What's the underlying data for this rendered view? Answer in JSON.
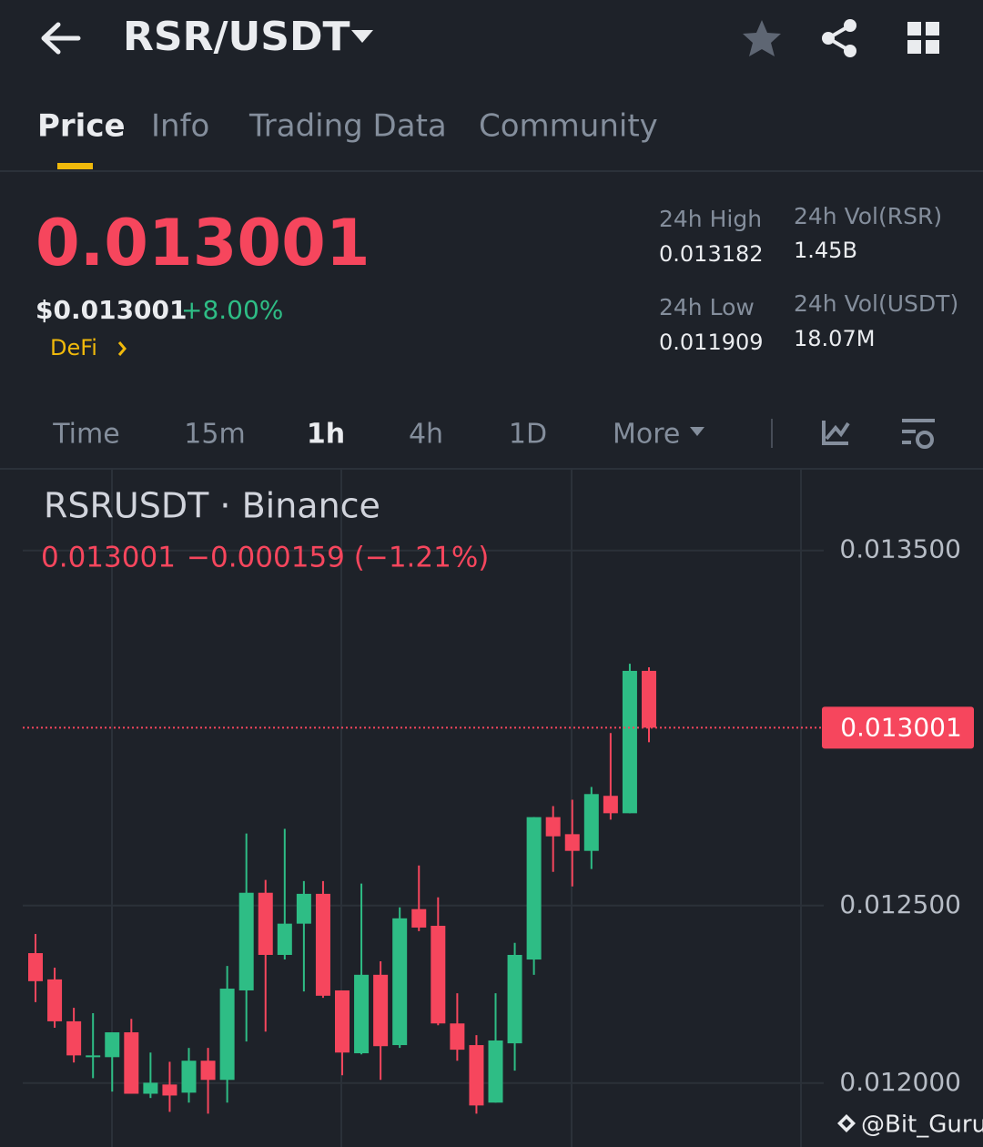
{
  "header": {
    "title": "RSR/USDT"
  },
  "tabs": [
    "Price",
    "Info",
    "Trading Data",
    "Community"
  ],
  "ticker": {
    "price": "0.013001",
    "usd_price": "$0.013001",
    "change": "+8.00%",
    "tag": "DeFi",
    "stats": [
      {
        "label": "24h High",
        "value": "0.013182"
      },
      {
        "label": "24h Vol(RSR)",
        "value": "1.45B"
      },
      {
        "label": "24h Low",
        "value": "0.011909"
      },
      {
        "label": "24h Vol(USDT)",
        "value": "18.07M"
      }
    ]
  },
  "intervals": [
    "Time",
    "15m",
    "1h",
    "4h",
    "1D",
    "More"
  ],
  "chart_data": {
    "type": "candlestick",
    "title": "RSRUSDT · Binance",
    "legend": [
      "0.013001",
      "−0.000159 (−1.21%)"
    ],
    "up_color": "#2ebd85",
    "down_color": "#f6465d",
    "grid": true,
    "ylim": [
      0.01182,
      0.01373
    ],
    "yticks": [
      {
        "value": 0.0135,
        "label": "0.013500"
      },
      {
        "value": 0.0125,
        "label": "0.012500"
      },
      {
        "value": 0.012,
        "label": "0.012000"
      }
    ],
    "last_price": {
      "value": 0.013001,
      "label": "0.013001"
    },
    "open": [
      0.012366,
      0.012292,
      0.012174,
      0.012078,
      0.012073,
      0.012143,
      0.01197,
      0.011996,
      0.011973,
      0.012063,
      0.012009,
      0.012261,
      0.012536,
      0.012361,
      0.012449,
      0.012533,
      0.012261,
      0.012084,
      0.012305,
      0.012107,
      0.01249,
      0.012443,
      0.012168,
      0.012107,
      0.011945,
      0.012112,
      0.012348,
      0.012749,
      0.012701,
      0.012654,
      0.012809,
      0.01276,
      0.013161
    ],
    "high": [
      0.01242,
      0.012325,
      0.012212,
      0.012197,
      0.012143,
      0.012181,
      0.012086,
      0.01206,
      0.012099,
      0.012099,
      0.01233,
      0.012703,
      0.012572,
      0.012716,
      0.012569,
      0.012569,
      0.012261,
      0.012562,
      0.012343,
      0.012495,
      0.012613,
      0.012523,
      0.012253,
      0.012135,
      0.012253,
      0.012395,
      0.012749,
      0.01278,
      0.012798,
      0.012834,
      0.012986,
      0.013181,
      0.013171
    ],
    "low": [
      0.012228,
      0.012156,
      0.012058,
      0.012014,
      0.011976,
      0.01197,
      0.011958,
      0.011919,
      0.011945,
      0.011914,
      0.011945,
      0.012117,
      0.012145,
      0.012348,
      0.012258,
      0.01224,
      0.012022,
      0.012081,
      0.012009,
      0.012099,
      0.012428,
      0.012163,
      0.012063,
      0.011914,
      0.011945,
      0.012035,
      0.012305,
      0.012595,
      0.012554,
      0.012603,
      0.012742,
      0.01276,
      0.01296
    ],
    "close": [
      0.012287,
      0.012174,
      0.012078,
      0.012078,
      0.012143,
      0.01197,
      0.012001,
      0.011965,
      0.012063,
      0.012009,
      0.012266,
      0.012536,
      0.012361,
      0.012449,
      0.012533,
      0.012246,
      0.012086,
      0.012305,
      0.012104,
      0.012464,
      0.012438,
      0.012168,
      0.012094,
      0.011937,
      0.01212,
      0.012361,
      0.012749,
      0.012695,
      0.012654,
      0.012814,
      0.01276,
      0.013161,
      0.013001
    ]
  },
  "watermark": "@Bit_Guru"
}
